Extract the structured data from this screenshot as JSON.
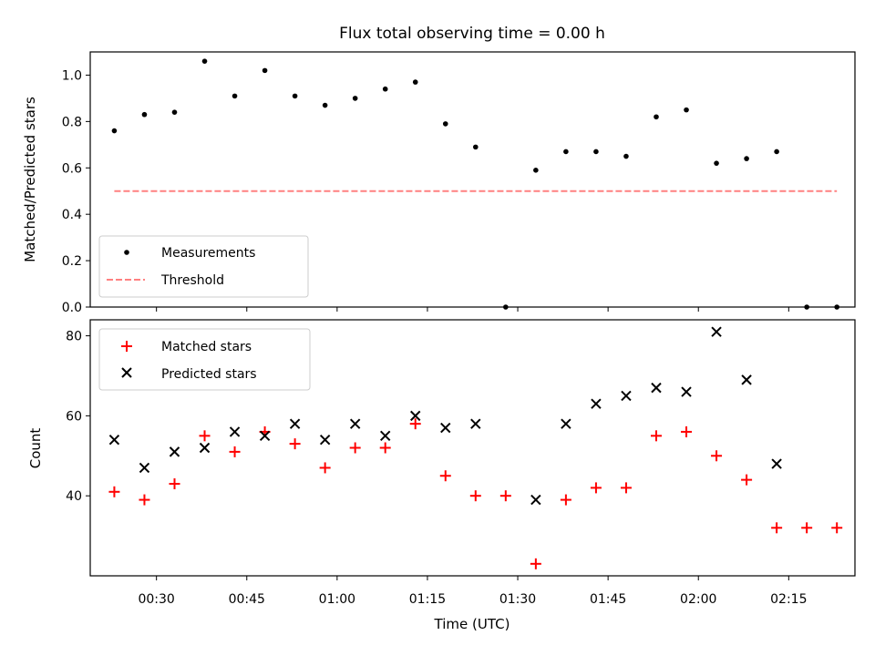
{
  "chart_data": {
    "title": "Flux total observing time = 0.00 h",
    "xlabel": "Time (UTC)",
    "xtick_labels": [
      "00:30",
      "00:45",
      "01:00",
      "01:15",
      "01:30",
      "01:45",
      "02:00",
      "02:15"
    ],
    "x_time": [
      "00:23",
      "00:28",
      "00:33",
      "00:38",
      "00:43",
      "00:48",
      "00:53",
      "00:58",
      "01:03",
      "01:08",
      "01:13",
      "01:18",
      "01:23",
      "01:28",
      "01:33",
      "01:38",
      "01:43",
      "01:48",
      "01:53",
      "01:58",
      "02:03",
      "02:08",
      "02:13",
      "02:18",
      "02:23"
    ],
    "panels": [
      {
        "type": "scatter",
        "ylabel": "Matched/Predicted stars",
        "ylim": [
          0,
          1.1
        ],
        "yticks": [
          0.0,
          0.2,
          0.4,
          0.6,
          0.8,
          1.0
        ],
        "ytick_labels": [
          "0.0",
          "0.2",
          "0.4",
          "0.6",
          "0.8",
          "1.0"
        ],
        "legend_position": "lower-left",
        "series": [
          {
            "name": "Measurements",
            "marker": "dot",
            "color": "#000000",
            "values": [
              0.76,
              0.83,
              0.84,
              1.06,
              0.91,
              1.02,
              0.91,
              0.87,
              0.9,
              0.94,
              0.97,
              0.79,
              0.69,
              0.0,
              0.59,
              0.67,
              0.67,
              0.65,
              0.82,
              0.85,
              0.62,
              0.64,
              0.67,
              0.0,
              0.0
            ]
          },
          {
            "name": "Threshold",
            "marker": "dashed-line",
            "color": "#ff8080",
            "x_range": [
              "00:23",
              "02:23"
            ],
            "value": 0.5
          }
        ]
      },
      {
        "type": "scatter",
        "ylabel": "Count",
        "ylim": [
          20,
          84
        ],
        "yticks": [
          40,
          60,
          80
        ],
        "ytick_labels": [
          "40",
          "60",
          "80"
        ],
        "legend_position": "upper-left",
        "series": [
          {
            "name": "Matched stars",
            "marker": "plus",
            "color": "#ff0000",
            "values": [
              41,
              39,
              43,
              55,
              51,
              56,
              53,
              47,
              52,
              52,
              58,
              45,
              40,
              40,
              23,
              39,
              42,
              42,
              55,
              56,
              50,
              44,
              32,
              32,
              32
            ]
          },
          {
            "name": "Predicted stars",
            "marker": "x",
            "color": "#000000",
            "values": [
              54,
              47,
              51,
              52,
              56,
              55,
              58,
              54,
              58,
              55,
              60,
              57,
              58,
              null,
              39,
              58,
              63,
              65,
              67,
              66,
              81,
              69,
              48,
              null,
              null
            ]
          }
        ]
      }
    ]
  }
}
